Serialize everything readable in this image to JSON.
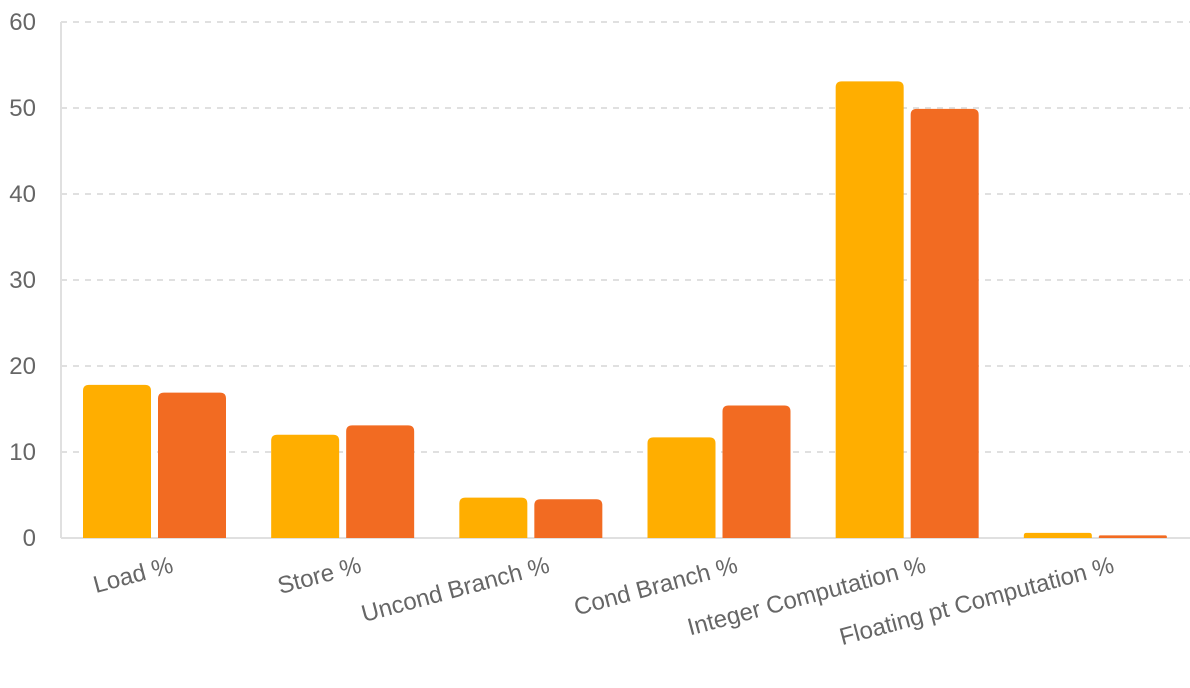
{
  "chart_data": {
    "type": "bar",
    "categories": [
      "Load %",
      "Store %",
      "Uncond Branch %",
      "Cond Branch %",
      "Integer Computation %",
      "Floating pt Computation %"
    ],
    "series": [
      {
        "values": [
          17.8,
          12.0,
          4.7,
          11.7,
          53.1,
          0.6
        ],
        "color": "#FFAE00"
      },
      {
        "values": [
          16.9,
          13.1,
          4.5,
          15.4,
          49.9,
          0.3
        ],
        "color": "#F26B22"
      }
    ],
    "yticks": [
      "0",
      "10",
      "20",
      "30",
      "40",
      "50",
      "60"
    ],
    "ylim": [
      0,
      60
    ],
    "grid": true,
    "legend": "none",
    "title": "",
    "xlabel": "",
    "ylabel": ""
  }
}
